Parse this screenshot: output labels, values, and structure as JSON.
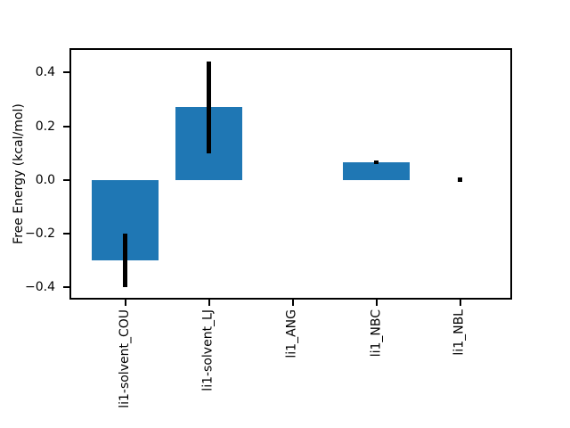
{
  "chart_data": {
    "type": "bar",
    "title": "",
    "xlabel": "",
    "ylabel": "Free Energy (kcal/mol)",
    "categories": [
      "li1-solvent_COU",
      "li1-solvent_LJ",
      "li1_ANG",
      "li1_NBC",
      "li1_NBL"
    ],
    "values": [
      -0.3,
      0.27,
      0.0,
      0.065,
      0.002
    ],
    "errors": [
      0.1,
      0.17,
      0.0,
      0.006,
      0.008
    ],
    "yticks": [
      0.4,
      0.2,
      0.0,
      -0.2,
      -0.4
    ],
    "ytick_labels": [
      "0.4",
      "0.2",
      "0.0",
      "−0.2",
      "−0.4"
    ],
    "ylim": [
      -0.44,
      0.49
    ],
    "xtick_rotation": 90,
    "bar_color": "#1f77b4",
    "error_color": "#000000",
    "axis_color": "#000000",
    "background_color": "#ffffff",
    "grid": false,
    "legend_position": "none"
  }
}
